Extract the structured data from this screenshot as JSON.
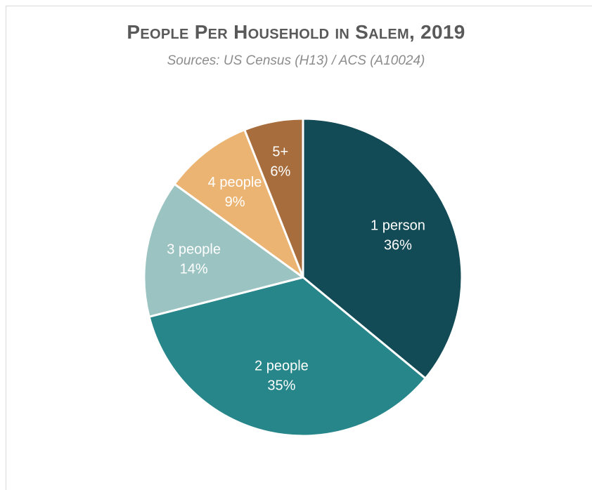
{
  "chart_data": {
    "type": "pie",
    "title": "People Per Household in Salem, 2019",
    "subtitle": "Sources: US Census (H13) / ACS (A10024)",
    "slices": [
      {
        "label": "1 person",
        "value": 36,
        "display": "36%",
        "color": "#124a55"
      },
      {
        "label": "2 people",
        "value": 35,
        "display": "35%",
        "color": "#27868a"
      },
      {
        "label": "3 people",
        "value": 14,
        "display": "14%",
        "color": "#9bc3c1"
      },
      {
        "label": "4 people",
        "value": 9,
        "display": "9%",
        "color": "#ecb473"
      },
      {
        "label": "5+",
        "value": 6,
        "display": "6%",
        "color": "#a86d3c"
      }
    ],
    "start_angle_deg": 0,
    "direction": "clockwise",
    "legend": "none"
  }
}
